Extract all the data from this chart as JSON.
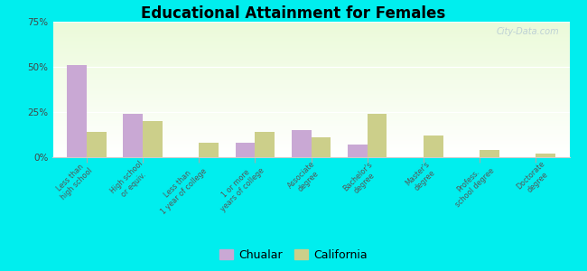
{
  "title": "Educational Attainment for Females",
  "categories": [
    "Less than\nhigh school",
    "High school\nor equiv.",
    "Less than\n1 year of college",
    "1 or more\nyears of college",
    "Associate\ndegree",
    "Bachelor's\ndegree",
    "Master's\ndegree",
    "Profess.\nschool degree",
    "Doctorate\ndegree"
  ],
  "chualar": [
    51,
    24,
    0,
    8,
    15,
    7,
    0,
    0,
    0
  ],
  "california": [
    14,
    20,
    8,
    14,
    11,
    24,
    12,
    4,
    2
  ],
  "chualar_color": "#c9a8d4",
  "california_color": "#cccf8a",
  "ylim": [
    0,
    75
  ],
  "yticks": [
    0,
    25,
    50,
    75
  ],
  "ytick_labels": [
    "0%",
    "25%",
    "50%",
    "75%"
  ],
  "outer_color": "#00eeee",
  "watermark": "City-Data.com",
  "legend_labels": [
    "Chualar",
    "California"
  ],
  "bar_width": 0.35
}
